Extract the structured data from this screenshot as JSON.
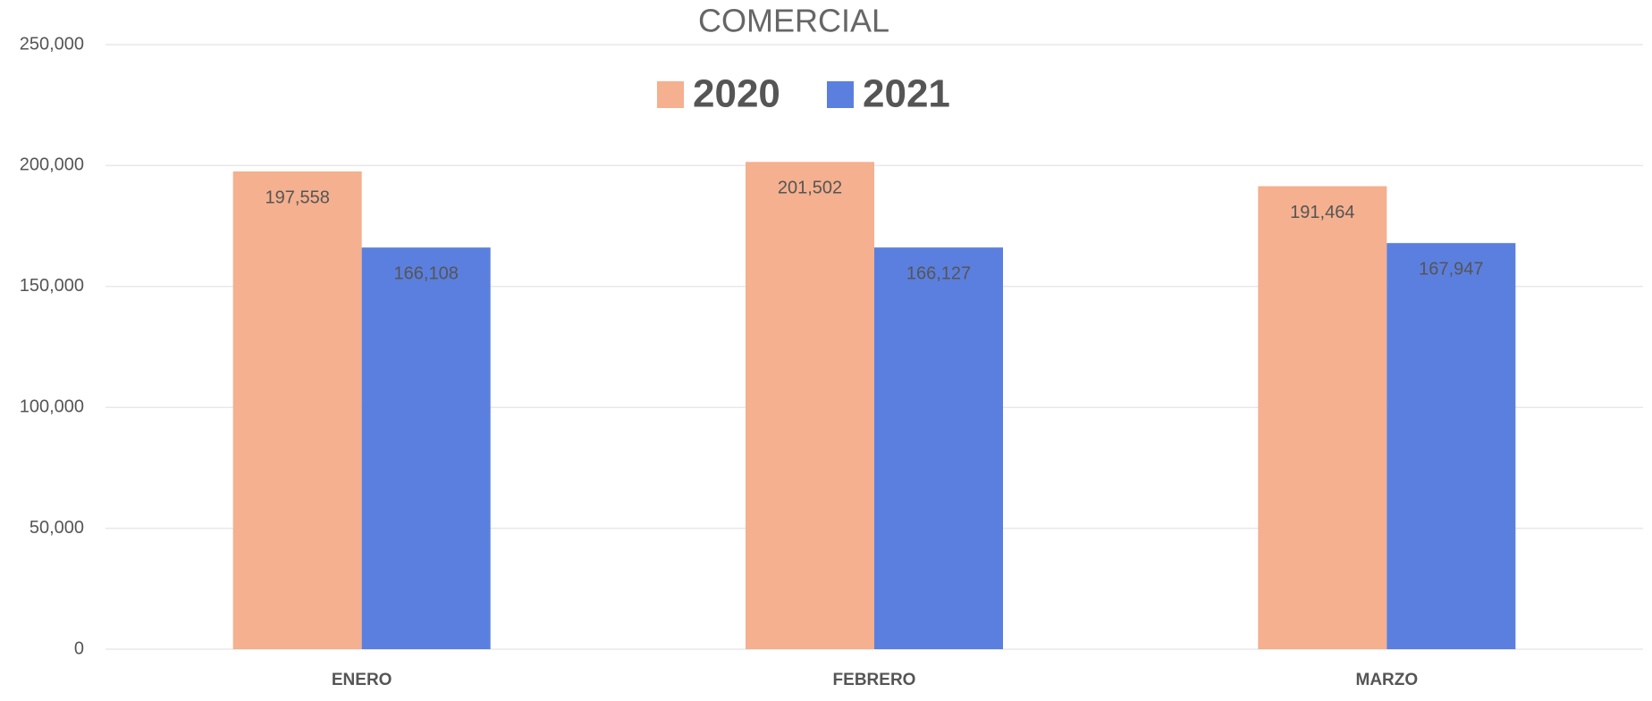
{
  "chart_data": {
    "type": "bar",
    "title": "COMERCIAL",
    "categories": [
      "ENERO",
      "FEBRERO",
      "MARZO"
    ],
    "series": [
      {
        "name": "2020",
        "color": "#f4b08f",
        "values": [
          197558,
          201502,
          191464
        ],
        "value_labels": [
          "197,558",
          "201,502",
          "191,464"
        ]
      },
      {
        "name": "2021",
        "color": "#5b7fde",
        "values": [
          166108,
          166127,
          167947
        ],
        "value_labels": [
          "166,108",
          "166,127",
          "167,947"
        ]
      }
    ],
    "ylim": [
      0,
      250000
    ],
    "yticks": [
      0,
      {
        "value": 50000,
        "label": "50,000"
      },
      {
        "value": 100000,
        "label": "100,000"
      },
      {
        "value": 150000,
        "label": "150,000"
      },
      {
        "value": 200000,
        "label": "200,000"
      },
      {
        "value": 250000,
        "label": "250,000"
      }
    ],
    "grid": true,
    "legend": "top"
  }
}
